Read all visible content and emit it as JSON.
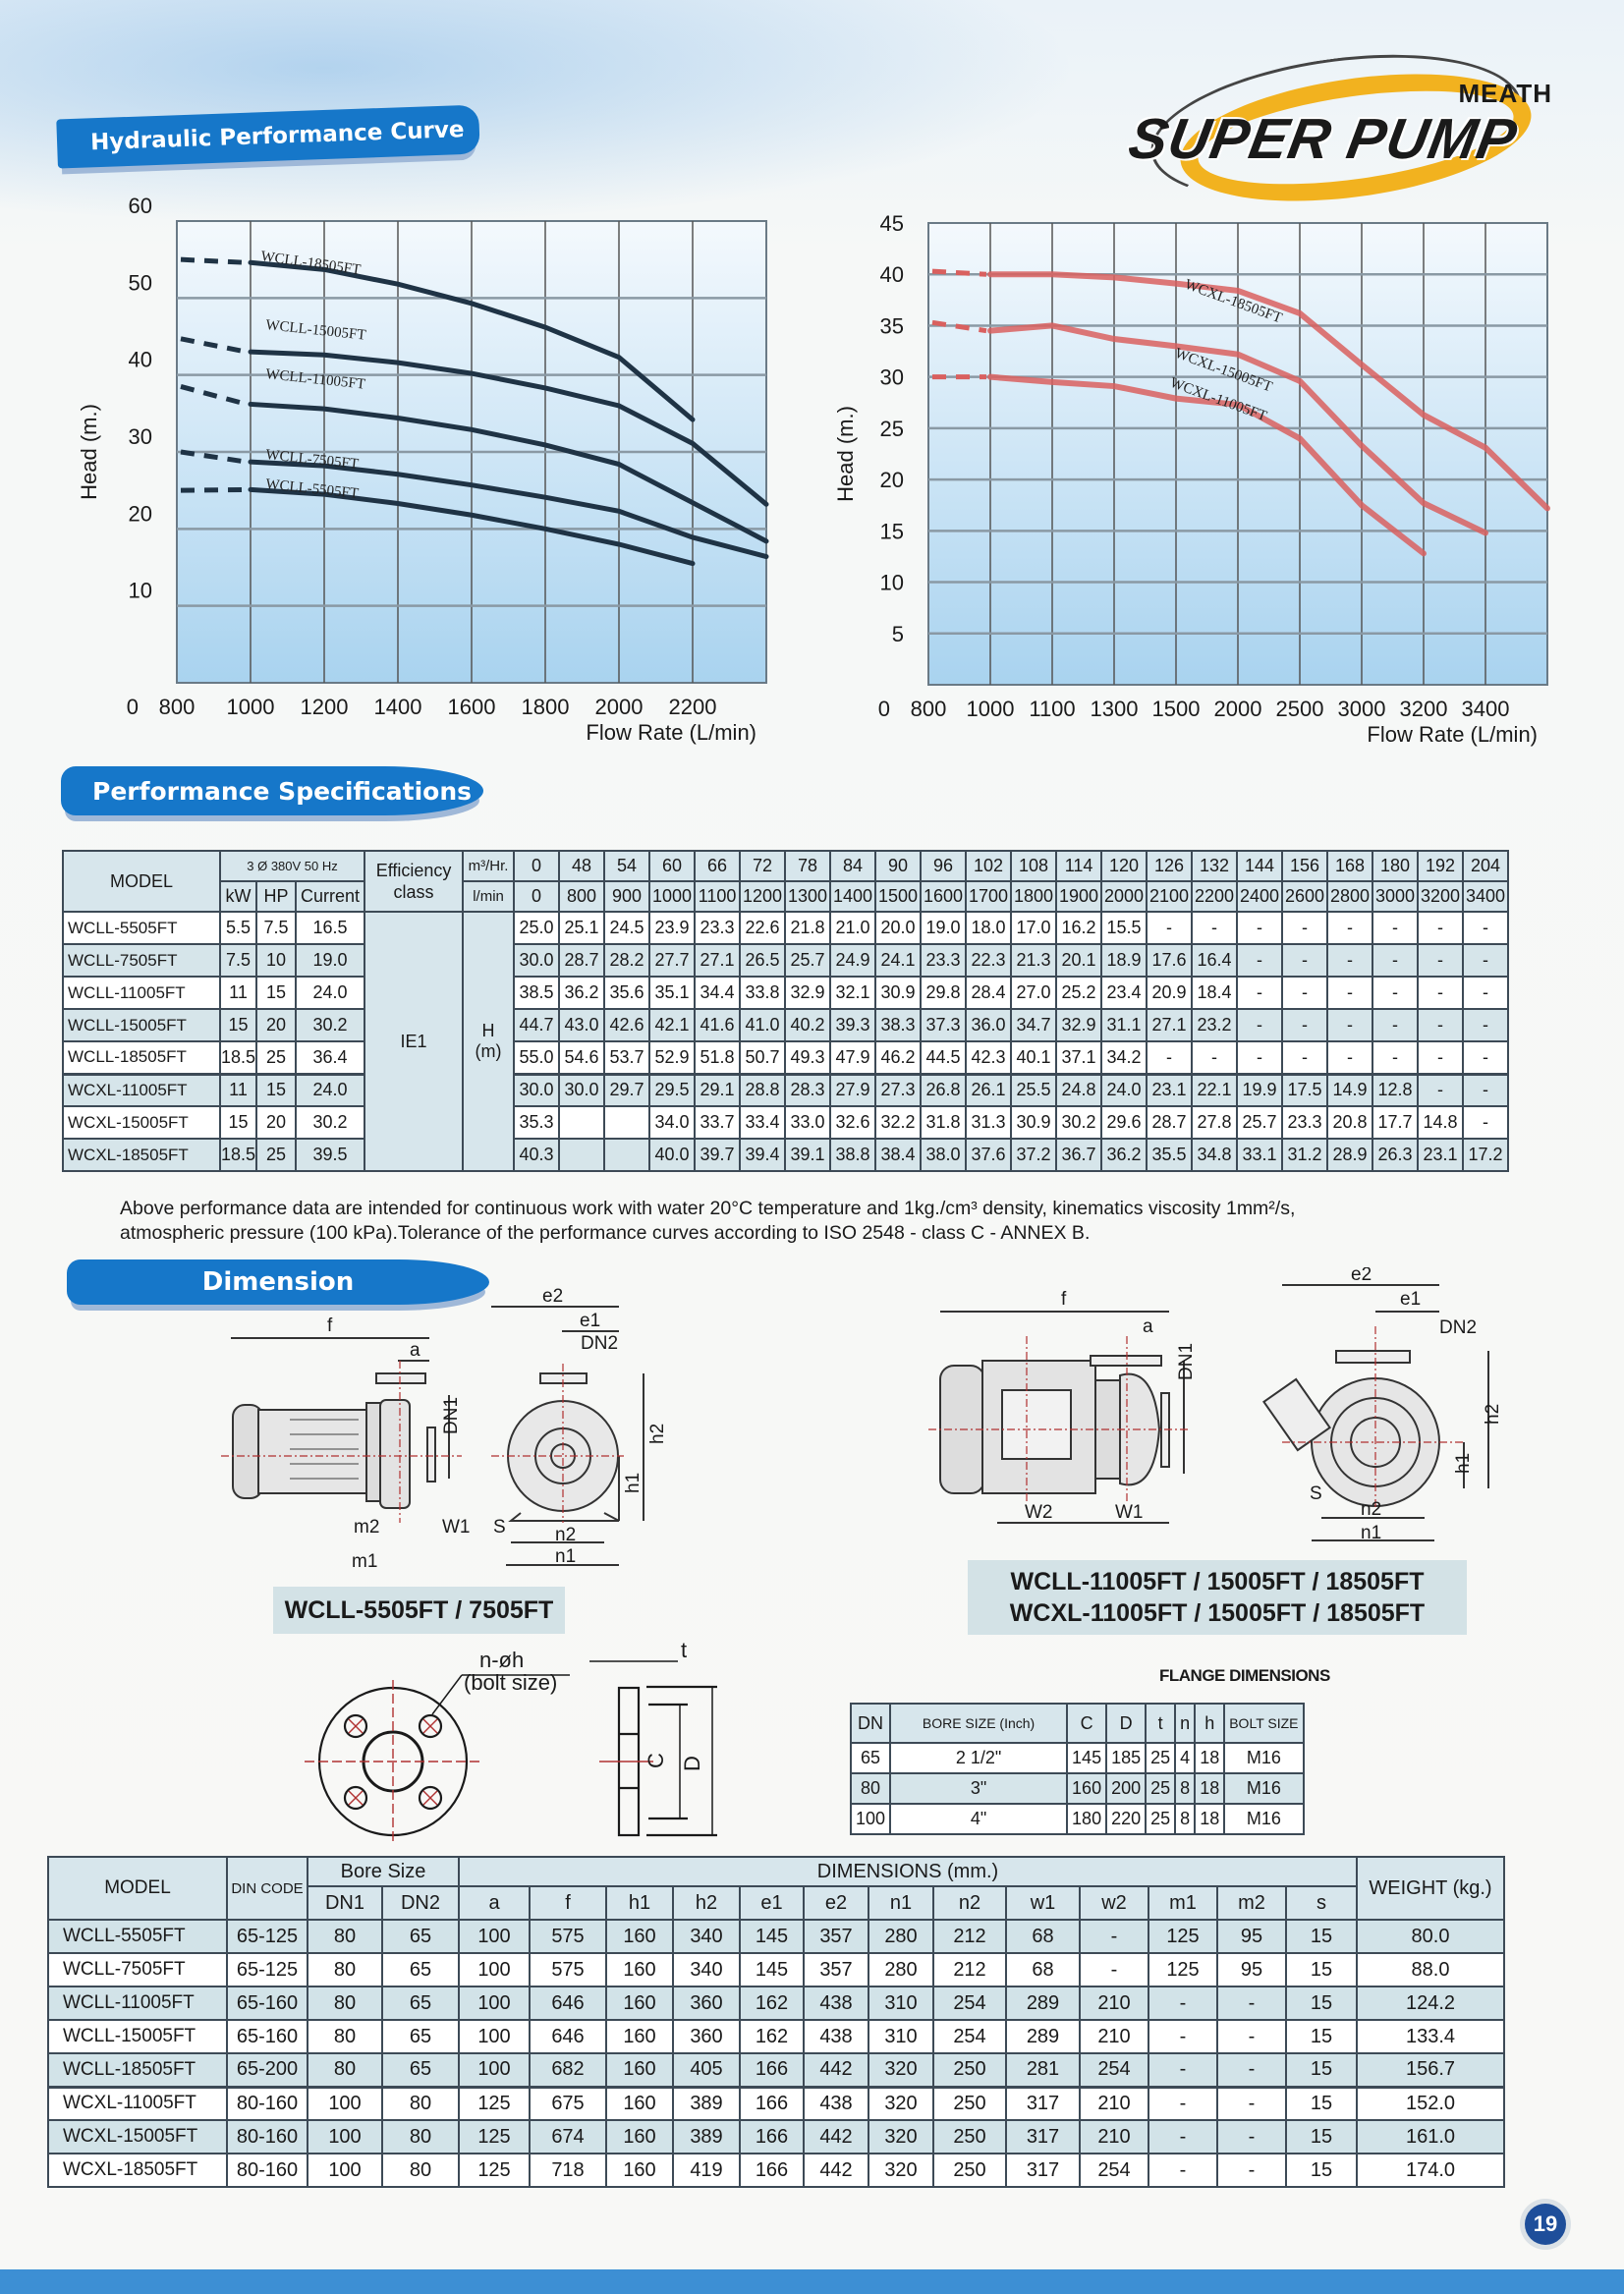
{
  "header": {
    "section_title": "Hydraulic Performance Curve",
    "logo": {
      "brand": "SUPER PUMP",
      "sub": "MEATH"
    }
  },
  "chart_data": [
    {
      "type": "line",
      "title": "WCLL series",
      "xlabel": "Flow Rate (L/min)",
      "ylabel": "Head (m.)",
      "x_ticks": [
        "0",
        "800",
        "1000",
        "1200",
        "1400",
        "1600",
        "1800",
        "2000",
        "2200"
      ],
      "y_ticks": [
        0,
        10,
        20,
        30,
        40,
        50,
        60
      ],
      "ylim": [
        0,
        60
      ],
      "grid": true,
      "line_color": "#1f3345",
      "series": [
        {
          "name": "WCLL-18505FT",
          "x": [
            0,
            800,
            1000,
            1200,
            1400,
            1600,
            1800,
            2000
          ],
          "values": [
            55.0,
            54.6,
            53.7,
            51.8,
            49.3,
            46.2,
            42.3,
            34.2
          ]
        },
        {
          "name": "WCLL-15005FT",
          "x": [
            0,
            800,
            1000,
            1200,
            1400,
            1600,
            1800,
            2000,
            2200
          ],
          "values": [
            44.7,
            43.0,
            42.6,
            41.6,
            40.2,
            38.3,
            36.0,
            31.1,
            23.2
          ]
        },
        {
          "name": "WCLL-11005FT",
          "x": [
            0,
            800,
            1000,
            1200,
            1400,
            1600,
            1800,
            2000,
            2200
          ],
          "values": [
            38.5,
            36.2,
            35.6,
            34.4,
            32.9,
            30.9,
            28.4,
            23.4,
            18.4
          ]
        },
        {
          "name": "WCLL-7505FT",
          "x": [
            0,
            800,
            1000,
            1200,
            1400,
            1600,
            1800,
            2000,
            2200
          ],
          "values": [
            30.0,
            28.7,
            28.2,
            27.1,
            25.7,
            24.1,
            22.3,
            18.9,
            16.4
          ]
        },
        {
          "name": "WCLL-5505FT",
          "x": [
            0,
            800,
            1000,
            1200,
            1400,
            1600,
            1800,
            2000
          ],
          "values": [
            25.0,
            25.1,
            24.5,
            23.3,
            21.8,
            20.0,
            18.0,
            15.5
          ]
        }
      ]
    },
    {
      "type": "line",
      "title": "WCXL series",
      "xlabel": "Flow Rate (L/min)",
      "ylabel": "Head (m.)",
      "x_ticks": [
        "0",
        "800",
        "1000",
        "1100",
        "1300",
        "1500",
        "2000",
        "2500",
        "3000",
        "3200",
        "3400"
      ],
      "y_ticks": [
        0,
        5,
        10,
        15,
        20,
        25,
        30,
        35,
        40,
        45
      ],
      "ylim": [
        0,
        45
      ],
      "grid": true,
      "line_color": "#d9605f",
      "series": [
        {
          "name": "WCXL-18505FT",
          "x": [
            0,
            800,
            1000,
            1100,
            1300,
            1500,
            2000,
            2500,
            3000,
            3200,
            3400
          ],
          "values": [
            40.3,
            40.0,
            40.0,
            39.7,
            39.1,
            38.4,
            36.2,
            31.2,
            26.3,
            23.1,
            17.2
          ]
        },
        {
          "name": "WCXL-15005FT",
          "x": [
            0,
            800,
            1000,
            1100,
            1300,
            1500,
            2000,
            2500,
            3000,
            3200
          ],
          "values": [
            35.3,
            34.5,
            35.0,
            33.7,
            33.0,
            32.2,
            29.6,
            23.3,
            17.7,
            14.8
          ]
        },
        {
          "name": "WCXL-11005FT",
          "x": [
            0,
            800,
            1000,
            1100,
            1300,
            1500,
            2000,
            2500,
            3000
          ],
          "values": [
            30.0,
            30.0,
            29.5,
            29.1,
            27.9,
            27.3,
            24.0,
            17.5,
            12.8
          ]
        }
      ]
    }
  ],
  "charts": {
    "left": {
      "ylabel": "Head (m.)",
      "xlabel": "Flow Rate (L/min)",
      "x_ticks": [
        "0",
        "800",
        "1000",
        "1200",
        "1400",
        "1600",
        "1800",
        "2000",
        "2200"
      ],
      "y_ticks": [
        "60",
        "50",
        "40",
        "30",
        "20",
        "10"
      ],
      "labels": [
        "WCLL-18505FT",
        "WCLL-15005FT",
        "WCLL-11005FT",
        "WCLL-7505FT",
        "WCLL-5505FT"
      ]
    },
    "right": {
      "ylabel": "Head (m.)",
      "xlabel": "Flow Rate (L/min)",
      "x_ticks": [
        "0",
        "800",
        "1000",
        "1100",
        "1300",
        "1500",
        "2000",
        "2500",
        "3000",
        "3200",
        "3400"
      ],
      "y_ticks": [
        "45",
        "40",
        "35",
        "30",
        "25",
        "20",
        "15",
        "10",
        "5"
      ],
      "labels": [
        "WCXL-18505FT",
        "WCXL-15005FT",
        "WCXL-11005FT"
      ]
    }
  },
  "performance": {
    "section_title": "Performance Specifications",
    "headers": {
      "model": "MODEL",
      "power_group": "3 Ø 380V 50 Hz",
      "kw": "kW",
      "hp": "HP",
      "current": "Current",
      "efficiency": "Efficiency class",
      "m3hr": "m³/Hr.",
      "lmin": "l/min",
      "flow_m3hr": [
        "0",
        "48",
        "54",
        "60",
        "66",
        "72",
        "78",
        "84",
        "90",
        "96",
        "102",
        "108",
        "114",
        "120",
        "126",
        "132",
        "144",
        "156",
        "168",
        "180",
        "192",
        "204"
      ],
      "flow_lmin": [
        "0",
        "800",
        "900",
        "1000",
        "1100",
        "1200",
        "1300",
        "1400",
        "1500",
        "1600",
        "1700",
        "1800",
        "1900",
        "2000",
        "2100",
        "2200",
        "2400",
        "2600",
        "2800",
        "3000",
        "3200",
        "3400"
      ]
    },
    "efficiency_value": "IE1",
    "head_label": "H",
    "head_unit": "(m)",
    "rows": [
      {
        "model": "WCLL-5505FT",
        "kw": "5.5",
        "hp": "7.5",
        "current": "16.5",
        "h": [
          "25.0",
          "25.1",
          "24.5",
          "23.9",
          "23.3",
          "22.6",
          "21.8",
          "21.0",
          "20.0",
          "19.0",
          "18.0",
          "17.0",
          "16.2",
          "15.5",
          "-",
          "-",
          "-",
          "-",
          "-",
          "-",
          "-",
          "-"
        ]
      },
      {
        "model": "WCLL-7505FT",
        "kw": "7.5",
        "hp": "10",
        "current": "19.0",
        "h": [
          "30.0",
          "28.7",
          "28.2",
          "27.7",
          "27.1",
          "26.5",
          "25.7",
          "24.9",
          "24.1",
          "23.3",
          "22.3",
          "21.3",
          "20.1",
          "18.9",
          "17.6",
          "16.4",
          "-",
          "-",
          "-",
          "-",
          "-",
          "-"
        ]
      },
      {
        "model": "WCLL-11005FT",
        "kw": "11",
        "hp": "15",
        "current": "24.0",
        "h": [
          "38.5",
          "36.2",
          "35.6",
          "35.1",
          "34.4",
          "33.8",
          "32.9",
          "32.1",
          "30.9",
          "29.8",
          "28.4",
          "27.0",
          "25.2",
          "23.4",
          "20.9",
          "18.4",
          "-",
          "-",
          "-",
          "-",
          "-",
          "-"
        ]
      },
      {
        "model": "WCLL-15005FT",
        "kw": "15",
        "hp": "20",
        "current": "30.2",
        "h": [
          "44.7",
          "43.0",
          "42.6",
          "42.1",
          "41.6",
          "41.0",
          "40.2",
          "39.3",
          "38.3",
          "37.3",
          "36.0",
          "34.7",
          "32.9",
          "31.1",
          "27.1",
          "23.2",
          "-",
          "-",
          "-",
          "-",
          "-",
          "-"
        ]
      },
      {
        "model": "WCLL-18505FT",
        "kw": "18.5",
        "hp": "25",
        "current": "36.4",
        "h": [
          "55.0",
          "54.6",
          "53.7",
          "52.9",
          "51.8",
          "50.7",
          "49.3",
          "47.9",
          "46.2",
          "44.5",
          "42.3",
          "40.1",
          "37.1",
          "34.2",
          "-",
          "-",
          "-",
          "-",
          "-",
          "-",
          "-",
          "-"
        ]
      },
      {
        "model": "WCXL-11005FT",
        "kw": "11",
        "hp": "15",
        "current": "24.0",
        "h": [
          "30.0",
          "30.0",
          "29.7",
          "29.5",
          "29.1",
          "28.8",
          "28.3",
          "27.9",
          "27.3",
          "26.8",
          "26.1",
          "25.5",
          "24.8",
          "24.0",
          "23.1",
          "22.1",
          "19.9",
          "17.5",
          "14.9",
          "12.8",
          "-",
          "-"
        ]
      },
      {
        "model": "WCXL-15005FT",
        "kw": "15",
        "hp": "20",
        "current": "30.2",
        "h": [
          "35.3",
          "",
          "",
          "34.0",
          "33.7",
          "33.4",
          "33.0",
          "32.6",
          "32.2",
          "31.8",
          "31.3",
          "30.9",
          "30.2",
          "29.6",
          "28.7",
          "27.8",
          "25.7",
          "23.3",
          "20.8",
          "17.7",
          "14.8",
          "-"
        ]
      },
      {
        "model": "WCXL-18505FT",
        "kw": "18.5",
        "hp": "25",
        "current": "39.5",
        "h": [
          "40.3",
          "",
          "",
          "40.0",
          "39.7",
          "39.4",
          "39.1",
          "38.8",
          "38.4",
          "38.0",
          "37.6",
          "37.2",
          "36.7",
          "36.2",
          "35.5",
          "34.8",
          "33.1",
          "31.2",
          "28.9",
          "26.3",
          "23.1",
          "17.2"
        ]
      }
    ],
    "note_line1": "Above performance data are intended for continuous work with water 20°C temperature and 1kg./cm³ density, kinematics viscosity 1mm²/s,",
    "note_line2": "atmospheric pressure (100 kPa).Tolerance of the performance curves according to ISO 2548 - class C - ANNEX B."
  },
  "dimension": {
    "section_title": "Dimension",
    "caption_small": "WCLL-5505FT / 7505FT",
    "caption_large_1": "WCLL-11005FT / 15005FT / 18505FT",
    "caption_large_2": "WCXL-11005FT / 15005FT / 18505FT",
    "drawing_labels": {
      "f": "f",
      "a": "a",
      "dn1": "DN1",
      "dn2": "DN2",
      "e1": "e1",
      "e2": "e2",
      "h1": "h1",
      "h2": "h2",
      "n1": "n1",
      "n2": "n2",
      "w1": "W1",
      "w2": "W2",
      "m1": "m1",
      "m2": "m2",
      "s": "S"
    },
    "flange_drawing": {
      "bolt_label": "n-øh",
      "bolt_sub": "(bolt size)",
      "t": "t",
      "c": "C",
      "d": "D"
    },
    "flange_table": {
      "title": "FLANGE DIMENSIONS",
      "headers": [
        "DN",
        "BORE SIZE (Inch)",
        "C",
        "D",
        "t",
        "n",
        "h",
        "BOLT SIZE"
      ],
      "rows": [
        [
          "65",
          "2 1/2\"",
          "145",
          "185",
          "25",
          "4",
          "18",
          "M16"
        ],
        [
          "80",
          "3\"",
          "160",
          "200",
          "25",
          "8",
          "18",
          "M16"
        ],
        [
          "100",
          "4\"",
          "180",
          "220",
          "25",
          "8",
          "18",
          "M16"
        ]
      ]
    },
    "table": {
      "headers": {
        "model": "MODEL",
        "din": "DIN CODE",
        "bore": "Bore Size",
        "dims": "DIMENSIONS (mm.)",
        "weight": "WEIGHT (kg.)",
        "cols": [
          "DN1",
          "DN2",
          "a",
          "f",
          "h1",
          "h2",
          "e1",
          "e2",
          "n1",
          "n2",
          "w1",
          "w2",
          "m1",
          "m2",
          "s"
        ]
      },
      "rows": [
        [
          "WCLL-5505FT",
          "65-125",
          "80",
          "65",
          "100",
          "575",
          "160",
          "340",
          "145",
          "357",
          "280",
          "212",
          "68",
          "-",
          "125",
          "95",
          "15",
          "80.0"
        ],
        [
          "WCLL-7505FT",
          "65-125",
          "80",
          "65",
          "100",
          "575",
          "160",
          "340",
          "145",
          "357",
          "280",
          "212",
          "68",
          "-",
          "125",
          "95",
          "15",
          "88.0"
        ],
        [
          "WCLL-11005FT",
          "65-160",
          "80",
          "65",
          "100",
          "646",
          "160",
          "360",
          "162",
          "438",
          "310",
          "254",
          "289",
          "210",
          "-",
          "-",
          "15",
          "124.2"
        ],
        [
          "WCLL-15005FT",
          "65-160",
          "80",
          "65",
          "100",
          "646",
          "160",
          "360",
          "162",
          "438",
          "310",
          "254",
          "289",
          "210",
          "-",
          "-",
          "15",
          "133.4"
        ],
        [
          "WCLL-18505FT",
          "65-200",
          "80",
          "65",
          "100",
          "682",
          "160",
          "405",
          "166",
          "442",
          "320",
          "250",
          "281",
          "254",
          "-",
          "-",
          "15",
          "156.7"
        ],
        [
          "WCXL-11005FT",
          "80-160",
          "100",
          "80",
          "125",
          "675",
          "160",
          "389",
          "166",
          "438",
          "320",
          "250",
          "317",
          "210",
          "-",
          "-",
          "15",
          "152.0"
        ],
        [
          "WCXL-15005FT",
          "80-160",
          "100",
          "80",
          "125",
          "674",
          "160",
          "389",
          "166",
          "442",
          "320",
          "250",
          "317",
          "210",
          "-",
          "-",
          "15",
          "161.0"
        ],
        [
          "WCXL-18505FT",
          "80-160",
          "100",
          "80",
          "125",
          "718",
          "160",
          "419",
          "166",
          "442",
          "320",
          "250",
          "317",
          "254",
          "-",
          "-",
          "15",
          "174.0"
        ]
      ]
    }
  },
  "footer": {
    "page_number": "19"
  },
  "colors": {
    "banner_blue": "#1677c9",
    "table_header": "#d7e6ec",
    "wclL_curve": "#1f3345",
    "wcxl_curve": "#d9605f",
    "logo_yellow": "#f2b21f",
    "page_badge": "#1e4e9a"
  }
}
